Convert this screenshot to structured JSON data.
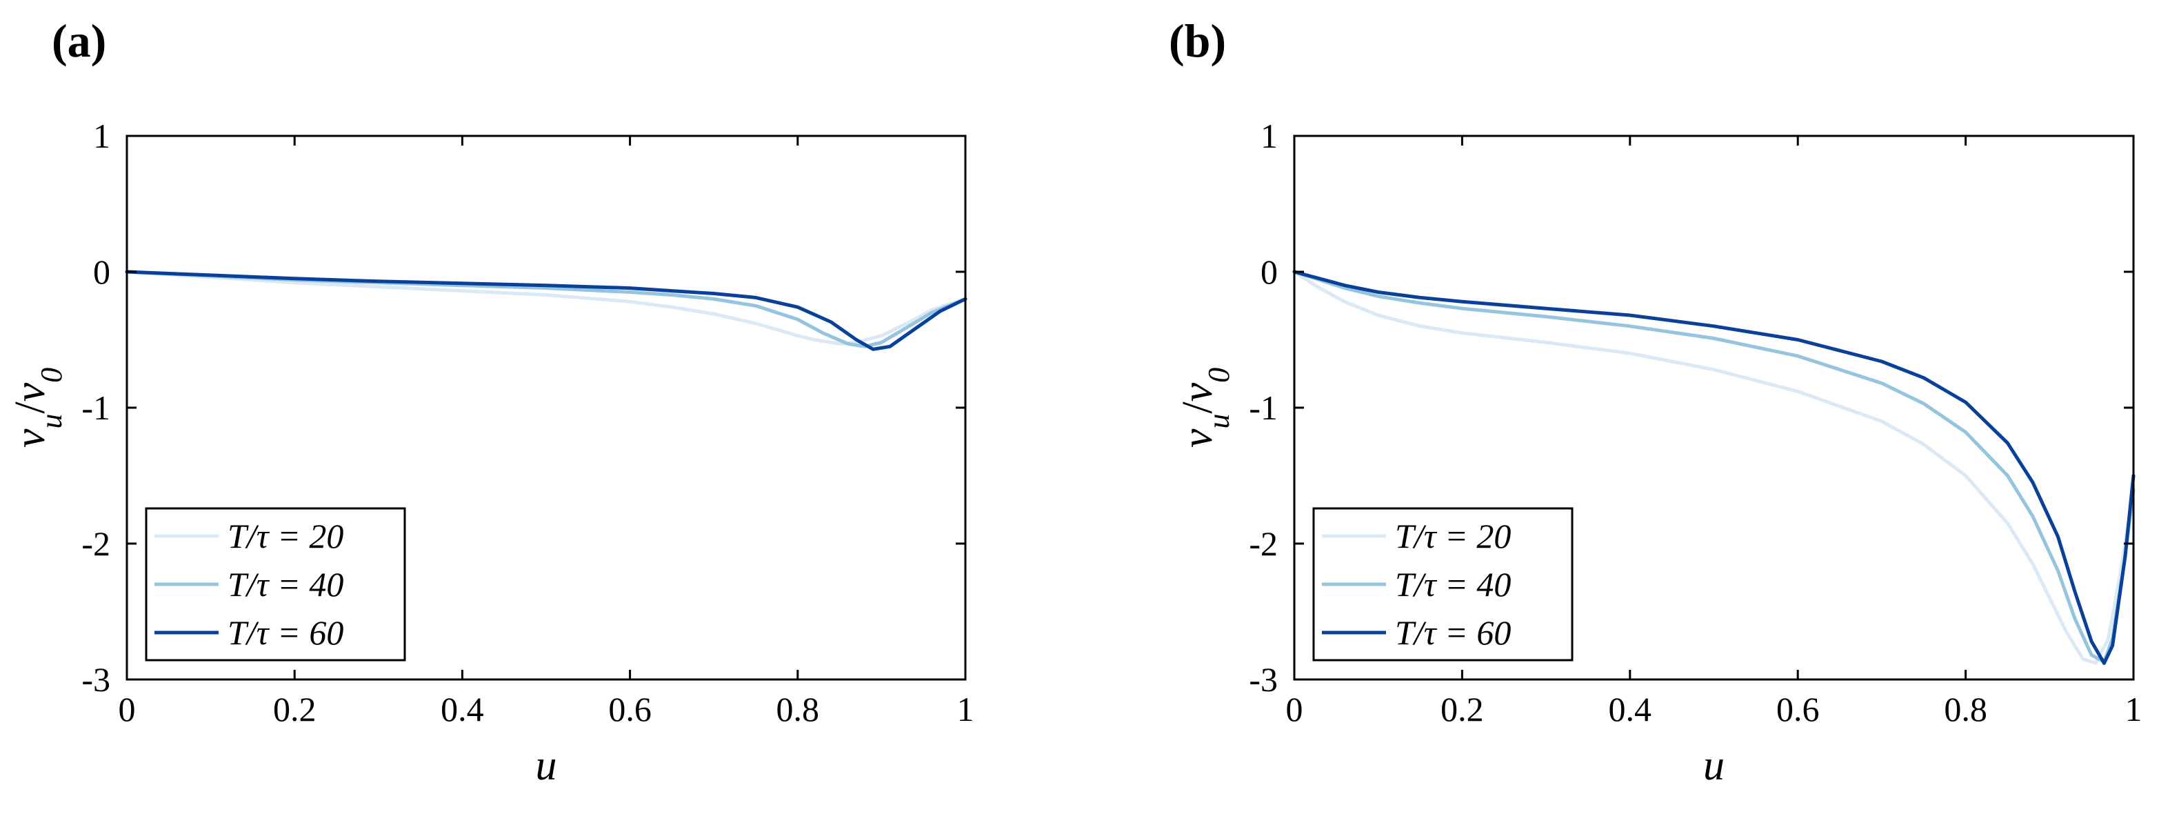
{
  "colors": {
    "t20": "#dbe8f5",
    "t40": "#95c4de",
    "t60": "#08409a",
    "axis": "#000000"
  },
  "chart_data": [
    {
      "type": "line",
      "panel_label": "(a)",
      "xlabel": "u",
      "ylabel": "v_u/v_0",
      "ylabel_parts": {
        "base": "v",
        "sub": "u",
        "slash": "/",
        "base2": "v",
        "sub2": "0"
      },
      "xlim": [
        0,
        1
      ],
      "ylim": [
        -3,
        1
      ],
      "xticks": [
        0,
        0.2,
        0.4,
        0.6,
        0.8,
        1
      ],
      "xtick_labels": [
        "0",
        "0.2",
        "0.4",
        "0.6",
        "0.8",
        "1"
      ],
      "yticks": [
        1,
        0,
        -1,
        -2,
        -3
      ],
      "ytick_labels": [
        "1",
        "0",
        "-1",
        "-2",
        "-3"
      ],
      "legend_position": "bottom-left",
      "series": [
        {
          "name": "T/τ = 20",
          "color_key": "t20",
          "x": [
            0,
            0.1,
            0.2,
            0.3,
            0.4,
            0.5,
            0.6,
            0.65,
            0.7,
            0.75,
            0.8,
            0.82,
            0.85,
            0.87,
            0.9,
            0.93,
            0.96,
            1.0
          ],
          "y": [
            0,
            -0.04,
            -0.08,
            -0.11,
            -0.14,
            -0.17,
            -0.22,
            -0.26,
            -0.31,
            -0.38,
            -0.47,
            -0.5,
            -0.53,
            -0.52,
            -0.47,
            -0.38,
            -0.28,
            -0.2
          ]
        },
        {
          "name": "T/τ = 40",
          "color_key": "t40",
          "x": [
            0,
            0.1,
            0.2,
            0.3,
            0.4,
            0.5,
            0.6,
            0.65,
            0.7,
            0.75,
            0.8,
            0.83,
            0.86,
            0.88,
            0.9,
            0.93,
            0.96,
            1.0
          ],
          "y": [
            0,
            -0.03,
            -0.06,
            -0.08,
            -0.1,
            -0.12,
            -0.15,
            -0.17,
            -0.2,
            -0.25,
            -0.35,
            -0.45,
            -0.53,
            -0.55,
            -0.52,
            -0.41,
            -0.3,
            -0.2
          ]
        },
        {
          "name": "T/τ = 60",
          "color_key": "t60",
          "x": [
            0,
            0.1,
            0.2,
            0.3,
            0.4,
            0.5,
            0.6,
            0.65,
            0.7,
            0.75,
            0.8,
            0.84,
            0.87,
            0.89,
            0.91,
            0.94,
            0.97,
            1.0
          ],
          "y": [
            0,
            -0.025,
            -0.05,
            -0.07,
            -0.085,
            -0.1,
            -0.12,
            -0.14,
            -0.16,
            -0.19,
            -0.26,
            -0.37,
            -0.5,
            -0.57,
            -0.55,
            -0.42,
            -0.29,
            -0.2
          ]
        }
      ]
    },
    {
      "type": "line",
      "panel_label": "(b)",
      "xlabel": "u",
      "ylabel": "v_u/v_0",
      "ylabel_parts": {
        "base": "v",
        "sub": "u",
        "slash": "/",
        "base2": "v",
        "sub2": "0"
      },
      "xlim": [
        0,
        1
      ],
      "ylim": [
        -3,
        1
      ],
      "xticks": [
        0,
        0.2,
        0.4,
        0.6,
        0.8,
        1
      ],
      "xtick_labels": [
        "0",
        "0.2",
        "0.4",
        "0.6",
        "0.8",
        "1"
      ],
      "yticks": [
        1,
        0,
        -1,
        -2,
        -3
      ],
      "ytick_labels": [
        "1",
        "0",
        "-1",
        "-2",
        "-3"
      ],
      "legend_position": "bottom-left",
      "series": [
        {
          "name": "T/τ = 20",
          "color_key": "t20",
          "x": [
            0,
            0.03,
            0.06,
            0.1,
            0.15,
            0.2,
            0.3,
            0.4,
            0.5,
            0.6,
            0.7,
            0.75,
            0.8,
            0.85,
            0.88,
            0.9,
            0.92,
            0.94,
            0.955,
            0.97,
            0.985,
            1.0
          ],
          "y": [
            0,
            -0.12,
            -0.22,
            -0.32,
            -0.4,
            -0.45,
            -0.52,
            -0.6,
            -0.72,
            -0.88,
            -1.1,
            -1.27,
            -1.5,
            -1.85,
            -2.15,
            -2.4,
            -2.65,
            -2.85,
            -2.88,
            -2.7,
            -2.2,
            -1.6
          ]
        },
        {
          "name": "T/τ = 40",
          "color_key": "t40",
          "x": [
            0,
            0.03,
            0.06,
            0.1,
            0.15,
            0.2,
            0.3,
            0.4,
            0.5,
            0.6,
            0.7,
            0.75,
            0.8,
            0.85,
            0.88,
            0.91,
            0.93,
            0.95,
            0.965,
            0.975,
            0.99,
            1.0
          ],
          "y": [
            0,
            -0.06,
            -0.12,
            -0.18,
            -0.23,
            -0.27,
            -0.33,
            -0.4,
            -0.49,
            -0.62,
            -0.82,
            -0.97,
            -1.18,
            -1.5,
            -1.8,
            -2.2,
            -2.55,
            -2.82,
            -2.87,
            -2.7,
            -2.1,
            -1.6
          ]
        },
        {
          "name": "T/τ = 60",
          "color_key": "t60",
          "x": [
            0,
            0.03,
            0.06,
            0.1,
            0.15,
            0.2,
            0.3,
            0.4,
            0.5,
            0.6,
            0.7,
            0.75,
            0.8,
            0.85,
            0.88,
            0.91,
            0.93,
            0.95,
            0.965,
            0.975,
            0.99,
            1.0
          ],
          "y": [
            0,
            -0.05,
            -0.1,
            -0.15,
            -0.19,
            -0.22,
            -0.27,
            -0.32,
            -0.4,
            -0.5,
            -0.66,
            -0.78,
            -0.96,
            -1.26,
            -1.55,
            -1.95,
            -2.35,
            -2.72,
            -2.88,
            -2.75,
            -2.1,
            -1.5
          ]
        }
      ]
    }
  ]
}
